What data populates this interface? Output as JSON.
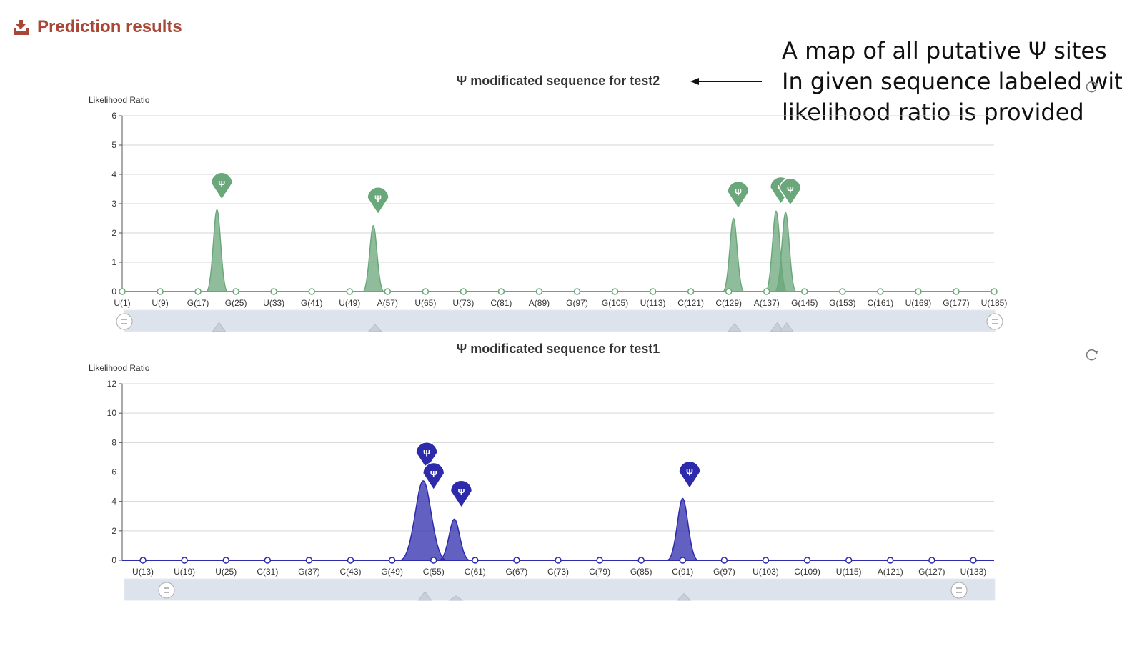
{
  "header": {
    "title": "Prediction results",
    "icon": "upload-tray-icon",
    "color": "#a94737"
  },
  "annotation": {
    "lines": [
      "A map of all putative Ψ sites",
      "In given sequence labeled with",
      "likelihood ratio is provided"
    ]
  },
  "chart_data": [
    {
      "type": "area",
      "title": "Ψ modificated sequence for test2",
      "ylabel": "Likelihood Ratio",
      "xlabel": "",
      "ylim": [
        0,
        6
      ],
      "yticks": [
        0,
        1,
        2,
        3,
        4,
        5,
        6
      ],
      "xlim": [
        1,
        185
      ],
      "x_ticks": [
        "U(1)",
        "U(9)",
        "G(17)",
        "G(25)",
        "U(33)",
        "G(41)",
        "U(49)",
        "A(57)",
        "U(65)",
        "U(73)",
        "C(81)",
        "A(89)",
        "G(97)",
        "G(105)",
        "U(113)",
        "C(121)",
        "C(129)",
        "A(137)",
        "G(145)",
        "G(153)",
        "C(161)",
        "U(169)",
        "G(177)",
        "U(185)"
      ],
      "series": [
        {
          "color": "#6aa77a",
          "peaks": [
            {
              "x": 21,
              "y": 2.8
            },
            {
              "x": 54,
              "y": 2.25
            },
            {
              "x": 130,
              "y": 2.5
            },
            {
              "x": 139,
              "y": 2.75
            },
            {
              "x": 141,
              "y": 2.7
            }
          ],
          "markers": [
            {
              "x": 22,
              "y": 3.7,
              "label": "Ψ"
            },
            {
              "x": 55,
              "y": 3.2,
              "label": "Ψ"
            },
            {
              "x": 131,
              "y": 3.4,
              "label": "Ψ"
            },
            {
              "x": 140,
              "y": 3.55,
              "label": "Ψ"
            },
            {
              "x": 142,
              "y": 3.5,
              "label": "Ψ"
            }
          ]
        }
      ],
      "grid": true,
      "zoom_slider": true,
      "refresh_icon": "refresh-icon"
    },
    {
      "type": "area",
      "title": "Ψ modificated sequence for test1",
      "ylabel": "Likelihood Ratio",
      "xlabel": "",
      "ylim": [
        0,
        12
      ],
      "yticks": [
        0,
        2,
        4,
        6,
        8,
        10,
        12
      ],
      "xlim": [
        10,
        136
      ],
      "x_ticks": [
        "U(13)",
        "U(19)",
        "U(25)",
        "C(31)",
        "G(37)",
        "C(43)",
        "G(49)",
        "C(55)",
        "C(61)",
        "G(67)",
        "C(73)",
        "C(79)",
        "G(85)",
        "C(91)",
        "G(97)",
        "U(103)",
        "C(109)",
        "U(115)",
        "A(121)",
        "G(127)",
        "U(133)"
      ],
      "series": [
        {
          "color": "#2d2bab",
          "peaks": [
            {
              "x": 53.5,
              "y": 5.4
            },
            {
              "x": 58,
              "y": 2.8
            },
            {
              "x": 91,
              "y": 4.2
            }
          ],
          "markers": [
            {
              "x": 54,
              "y": 7.3,
              "label": "Ψ"
            },
            {
              "x": 55,
              "y": 5.9,
              "label": "Ψ"
            },
            {
              "x": 59,
              "y": 4.7,
              "label": "Ψ"
            },
            {
              "x": 92,
              "y": 6.0,
              "label": "Ψ"
            }
          ]
        }
      ],
      "grid": true,
      "zoom_slider": true,
      "refresh_icon": "refresh-icon"
    }
  ]
}
